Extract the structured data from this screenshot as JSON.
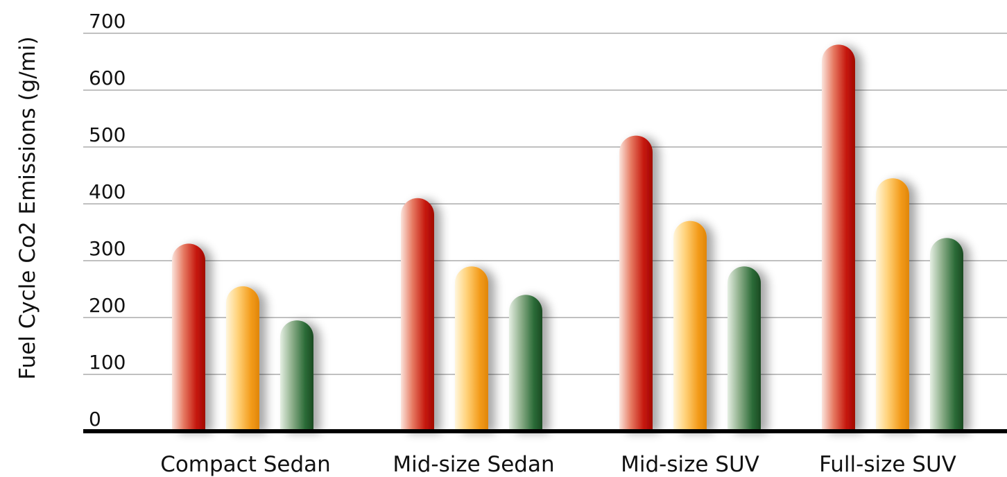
{
  "chart_data": {
    "type": "bar",
    "title": "",
    "xlabel": "",
    "ylabel": "Fuel Cycle Co2 Emissions (g/mi)",
    "ylim": [
      0,
      700
    ],
    "yticks": [
      0,
      100,
      200,
      300,
      400,
      500,
      600,
      700
    ],
    "grid": true,
    "legend": "none",
    "categories": [
      "Compact Sedan",
      "Mid-size Sedan",
      "Mid-size SUV",
      "Full-size SUV"
    ],
    "series": [
      {
        "color": "#c4140a",
        "values": [
          330,
          410,
          520,
          680
        ]
      },
      {
        "color": "#f39b1a",
        "values": [
          255,
          290,
          370,
          445
        ]
      },
      {
        "color": "#1f5a2a",
        "values": [
          195,
          240,
          290,
          340
        ]
      }
    ]
  }
}
